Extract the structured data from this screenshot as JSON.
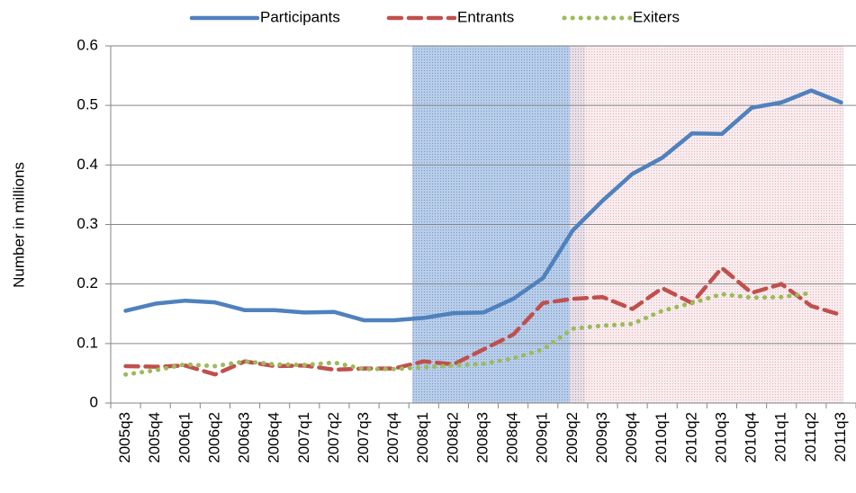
{
  "chart_data": {
    "type": "line",
    "y_label": "Number in millions",
    "categories": [
      "2005q3",
      "2005q4",
      "2006q1",
      "2006q2",
      "2006q3",
      "2006q4",
      "2007q1",
      "2007q2",
      "2007q3",
      "2007q4",
      "2008q1",
      "2008q2",
      "2008q3",
      "2008q4",
      "2009q1",
      "2009q2",
      "2009q3",
      "2009q4",
      "2010q1",
      "2010q2",
      "2010q3",
      "2010q4",
      "2011q1",
      "2011q2",
      "2011q3"
    ],
    "series": [
      {
        "name": "Participants",
        "color": "#4f81bd",
        "dash": "solid",
        "values": [
          0.155,
          0.167,
          0.172,
          0.169,
          0.156,
          0.156,
          0.152,
          0.153,
          0.139,
          0.139,
          0.143,
          0.151,
          0.152,
          0.175,
          0.21,
          0.29,
          0.34,
          0.385,
          0.412,
          0.453,
          0.452,
          0.496,
          0.505,
          0.525,
          0.505
        ]
      },
      {
        "name": "Entrants",
        "color": "#c0504d",
        "dash": "dash",
        "values": [
          0.062,
          0.061,
          0.063,
          0.048,
          0.07,
          0.062,
          0.063,
          0.056,
          0.058,
          0.058,
          0.07,
          0.065,
          0.09,
          0.115,
          0.168,
          0.175,
          0.178,
          0.158,
          0.193,
          0.168,
          0.227,
          0.185,
          0.2,
          0.163,
          0.148
        ]
      },
      {
        "name": "Exiters",
        "color": "#9bbb59",
        "dash": "dot",
        "values": [
          0.048,
          0.055,
          0.065,
          0.062,
          0.07,
          0.065,
          0.064,
          0.068,
          0.057,
          0.057,
          0.06,
          0.063,
          0.066,
          0.075,
          0.09,
          0.125,
          0.13,
          0.133,
          0.155,
          0.168,
          0.183,
          0.177,
          0.178,
          0.185,
          null
        ]
      }
    ],
    "ylim": [
      0,
      0.6
    ],
    "yticks": [
      0,
      0.1,
      0.2,
      0.3,
      0.4,
      0.5,
      0.6
    ],
    "grid": true,
    "legend": "top"
  }
}
